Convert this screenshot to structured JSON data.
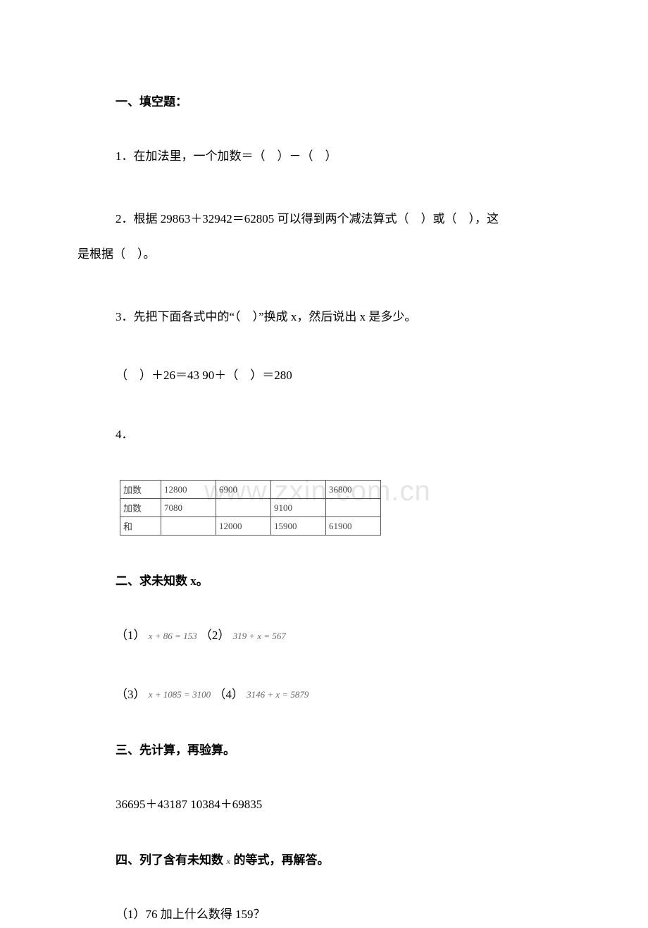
{
  "section1": {
    "header": "一、填空题：",
    "q1": "1．在加法里，一个加数＝（　）－（　）",
    "q2_line1": "2．根据 29863＋32942＝62805 可以得到两个减法算式（　）或（　），这",
    "q2_line2": "是根据（　）。",
    "q3": "3．先把下面各式中的“（　）”换成 x，然后说出 x 是多少。",
    "q3_expr": "（　）＋26＝43 90＋（　）＝280",
    "q4": "4．"
  },
  "table": {
    "rows": [
      {
        "label": "加数",
        "c1": "12800",
        "c2": "6900",
        "c3": "",
        "c4": "36800"
      },
      {
        "label": "加数",
        "c1": "7080",
        "c2": "",
        "c3": "9100",
        "c4": ""
      },
      {
        "label": "和",
        "c1": "",
        "c2": "12000",
        "c3": "15900",
        "c4": "61900"
      }
    ]
  },
  "watermark": "www.zxin.com.cn",
  "section2": {
    "header": "二、求未知数 x。",
    "line1_a": "（1）",
    "eq1": "x + 86 = 153",
    "line1_b": "（2）",
    "eq2": "319 + x = 567",
    "line2_a": "（3）",
    "eq3": "x + 1085 = 3100",
    "line2_b": "（4）",
    "eq4": "3146 + x = 5879"
  },
  "section3": {
    "header": "三、先计算，再验算。",
    "line1": "36695＋43187 10384＋69835"
  },
  "section4": {
    "header_a": "四、列了含有未知数 ",
    "header_x": "x",
    "header_b": " 的等式，再解答。",
    "q1": "（1）76 加上什么数得 159？"
  },
  "styles": {
    "body_bg": "#ffffff",
    "text_color": "#000000",
    "table_border": "#555555",
    "table_text": "#444444",
    "watermark_color": "rgba(180,180,180,0.35)",
    "eq_color": "#666666",
    "base_fontsize": 17,
    "table_fontsize": 13,
    "eq_fontsize": 13,
    "watermark_fontsize": 40
  }
}
